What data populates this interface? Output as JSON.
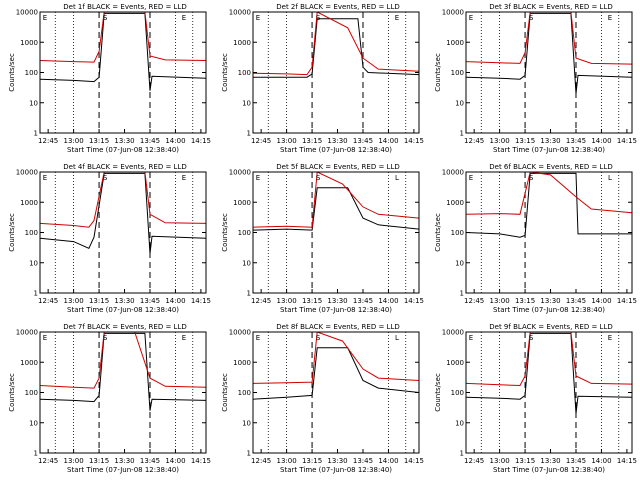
{
  "figure": {
    "xlabel": "Start Time (07-Jun-08 12:38:40)",
    "ylabel": "Counts/sec",
    "xticks": [
      "12:45",
      "13:00",
      "13:15",
      "13:30",
      "13:45",
      "14:00",
      "14:15"
    ],
    "yticks": [
      "1",
      "10",
      "100",
      "1000",
      "10000"
    ]
  },
  "chart_data": [
    {
      "type": "line",
      "title": "Det 1f BLACK = Events, RED = LLD",
      "flags": [
        "E",
        "S",
        "E"
      ],
      "xlim": [
        12.67,
        14.3
      ],
      "ylim": [
        1,
        10000
      ],
      "ylog": true,
      "dashed_x": [
        13.25,
        13.75
      ],
      "dotted_x": [
        12.82,
        13.0,
        14.0,
        14.17
      ],
      "series": [
        {
          "name": "Events",
          "color": "#000000",
          "x": [
            12.67,
            13.0,
            13.2,
            13.25,
            13.3,
            13.7,
            13.75,
            13.77,
            14.3
          ],
          "y": [
            60,
            55,
            50,
            70,
            9000,
            9000,
            25,
            75,
            65
          ]
        },
        {
          "name": "LLD",
          "color": "#d00000",
          "x": [
            12.67,
            13.0,
            13.2,
            13.25,
            13.3,
            13.7,
            13.75,
            13.9,
            14.3
          ],
          "y": [
            250,
            230,
            220,
            500,
            10000,
            10000,
            350,
            260,
            250
          ]
        }
      ]
    },
    {
      "type": "line",
      "title": "Det 2f BLACK = Events, RED = LLD",
      "flags": [
        "E",
        "S",
        "E"
      ],
      "xlim": [
        12.67,
        14.3
      ],
      "ylim": [
        1,
        10000
      ],
      "ylog": true,
      "dashed_x": [
        13.25,
        13.75
      ],
      "dotted_x": [
        12.82,
        13.0,
        14.0,
        14.17
      ],
      "series": [
        {
          "name": "Events",
          "color": "#000000",
          "x": [
            12.67,
            13.0,
            13.2,
            13.25,
            13.3,
            13.7,
            13.75,
            13.8,
            14.3
          ],
          "y": [
            70,
            70,
            70,
            90,
            6000,
            6000,
            150,
            100,
            85
          ]
        },
        {
          "name": "LLD",
          "color": "#d00000",
          "x": [
            12.67,
            13.0,
            13.2,
            13.25,
            13.3,
            13.6,
            13.75,
            13.9,
            14.3
          ],
          "y": [
            95,
            90,
            85,
            150,
            10000,
            3000,
            300,
            130,
            110
          ]
        }
      ]
    },
    {
      "type": "line",
      "title": "Det 3f BLACK = Events, RED = LLD",
      "flags": [
        "E",
        "S",
        "E"
      ],
      "xlim": [
        12.67,
        14.3
      ],
      "ylim": [
        1,
        10000
      ],
      "ylog": true,
      "dashed_x": [
        13.25,
        13.75
      ],
      "dotted_x": [
        12.82,
        13.0,
        14.0,
        14.17
      ],
      "series": [
        {
          "name": "Events",
          "color": "#000000",
          "x": [
            12.67,
            13.0,
            13.2,
            13.25,
            13.3,
            13.7,
            13.75,
            13.77,
            14.3
          ],
          "y": [
            70,
            65,
            60,
            80,
            9000,
            9000,
            20,
            80,
            70
          ]
        },
        {
          "name": "LLD",
          "color": "#d00000",
          "x": [
            12.67,
            13.0,
            13.2,
            13.25,
            13.3,
            13.7,
            13.75,
            13.9,
            14.3
          ],
          "y": [
            230,
            210,
            200,
            450,
            10000,
            10000,
            300,
            200,
            190
          ]
        }
      ]
    },
    {
      "type": "line",
      "title": "Det 4f BLACK = Events, RED = LLD",
      "flags": [
        "E",
        "S",
        "E"
      ],
      "xlim": [
        12.67,
        14.3
      ],
      "ylim": [
        1,
        10000
      ],
      "ylog": true,
      "dashed_x": [
        13.25,
        13.75
      ],
      "dotted_x": [
        12.82,
        13.0,
        14.0,
        14.17
      ],
      "series": [
        {
          "name": "Events",
          "color": "#000000",
          "x": [
            12.67,
            13.0,
            13.15,
            13.2,
            13.3,
            13.7,
            13.75,
            13.77,
            14.3
          ],
          "y": [
            65,
            50,
            30,
            70,
            9000,
            9000,
            20,
            75,
            65
          ]
        },
        {
          "name": "LLD",
          "color": "#d00000",
          "x": [
            12.67,
            13.0,
            13.15,
            13.2,
            13.3,
            13.7,
            13.75,
            13.9,
            14.3
          ],
          "y": [
            200,
            170,
            150,
            250,
            10000,
            10000,
            400,
            210,
            200
          ]
        }
      ]
    },
    {
      "type": "line",
      "title": "Det 5f BLACK = Events, RED = LLD",
      "flags": [
        "E",
        "S",
        "L"
      ],
      "xlim": [
        12.67,
        14.3
      ],
      "ylim": [
        1,
        10000
      ],
      "ylog": true,
      "dashed_x": [
        13.25
      ],
      "dotted_x": [
        12.82,
        13.0,
        14.0,
        14.17
      ],
      "series": [
        {
          "name": "Events",
          "color": "#000000",
          "x": [
            12.67,
            13.0,
            13.25,
            13.3,
            13.6,
            13.75,
            13.9,
            14.3
          ],
          "y": [
            120,
            130,
            120,
            3000,
            3000,
            300,
            180,
            130
          ]
        },
        {
          "name": "LLD",
          "color": "#d00000",
          "x": [
            12.67,
            13.0,
            13.25,
            13.3,
            13.55,
            13.75,
            13.9,
            14.3
          ],
          "y": [
            150,
            160,
            150,
            10000,
            4000,
            700,
            400,
            300
          ]
        }
      ]
    },
    {
      "type": "line",
      "title": "Det 6f BLACK = Events, RED = LLD",
      "flags": [
        "E",
        "S",
        "L"
      ],
      "xlim": [
        12.67,
        14.3
      ],
      "ylim": [
        1,
        10000
      ],
      "ylog": true,
      "dashed_x": [
        13.25
      ],
      "dotted_x": [
        12.82,
        13.0,
        14.0,
        14.17
      ],
      "series": [
        {
          "name": "Events",
          "color": "#000000",
          "x": [
            12.67,
            13.0,
            13.2,
            13.25,
            13.3,
            13.75,
            13.77,
            14.3
          ],
          "y": [
            100,
            90,
            70,
            80,
            9000,
            9000,
            90,
            90
          ]
        },
        {
          "name": "LLD",
          "color": "#d00000",
          "x": [
            12.67,
            13.0,
            13.2,
            13.3,
            13.5,
            13.75,
            13.9,
            14.3
          ],
          "y": [
            400,
            420,
            400,
            10000,
            8000,
            1500,
            600,
            450
          ]
        }
      ]
    },
    {
      "type": "line",
      "title": "Det 7f BLACK = Events, RED = LLD",
      "flags": [
        "E",
        "S",
        "E"
      ],
      "xlim": [
        12.67,
        14.3
      ],
      "ylim": [
        1,
        10000
      ],
      "ylog": true,
      "dashed_x": [
        13.25,
        13.75
      ],
      "dotted_x": [
        12.82,
        13.0,
        14.0,
        14.17
      ],
      "series": [
        {
          "name": "Events",
          "color": "#000000",
          "x": [
            12.67,
            13.0,
            13.2,
            13.25,
            13.3,
            13.7,
            13.75,
            13.77,
            14.3
          ],
          "y": [
            60,
            55,
            50,
            80,
            9000,
            9000,
            25,
            60,
            55
          ]
        },
        {
          "name": "LLD",
          "color": "#d00000",
          "x": [
            12.67,
            13.0,
            13.2,
            13.25,
            13.3,
            13.6,
            13.75,
            13.9,
            14.3
          ],
          "y": [
            170,
            150,
            140,
            300,
            10000,
            10000,
            300,
            160,
            150
          ]
        }
      ]
    },
    {
      "type": "line",
      "title": "Det 8f BLACK = Events, RED = LLD",
      "flags": [
        "E",
        "S",
        "L"
      ],
      "xlim": [
        12.67,
        14.3
      ],
      "ylim": [
        1,
        10000
      ],
      "ylog": true,
      "dashed_x": [
        13.25
      ],
      "dotted_x": [
        12.82,
        13.0,
        14.0,
        14.17
      ],
      "series": [
        {
          "name": "Events",
          "color": "#000000",
          "x": [
            12.67,
            13.0,
            13.25,
            13.3,
            13.6,
            13.75,
            13.9,
            14.3
          ],
          "y": [
            60,
            70,
            80,
            3000,
            3000,
            250,
            140,
            100
          ]
        },
        {
          "name": "LLD",
          "color": "#d00000",
          "x": [
            12.67,
            13.0,
            13.25,
            13.3,
            13.55,
            13.75,
            13.9,
            14.3
          ],
          "y": [
            200,
            210,
            220,
            10000,
            5000,
            600,
            300,
            250
          ]
        }
      ]
    },
    {
      "type": "line",
      "title": "Det 9f BLACK = Events, RED = LLD",
      "flags": [
        "E",
        "S",
        "E"
      ],
      "xlim": [
        12.67,
        14.3
      ],
      "ylim": [
        1,
        10000
      ],
      "ylog": true,
      "dashed_x": [
        13.25,
        13.75
      ],
      "dotted_x": [
        12.82,
        13.0,
        14.0,
        14.17
      ],
      "series": [
        {
          "name": "Events",
          "color": "#000000",
          "x": [
            12.67,
            13.0,
            13.2,
            13.25,
            13.3,
            13.7,
            13.75,
            13.77,
            14.3
          ],
          "y": [
            70,
            65,
            60,
            80,
            9000,
            9000,
            20,
            75,
            70
          ]
        },
        {
          "name": "LLD",
          "color": "#d00000",
          "x": [
            12.67,
            13.0,
            13.2,
            13.25,
            13.3,
            13.7,
            13.75,
            13.9,
            14.3
          ],
          "y": [
            200,
            180,
            170,
            350,
            10000,
            10000,
            350,
            200,
            190
          ]
        }
      ]
    }
  ]
}
